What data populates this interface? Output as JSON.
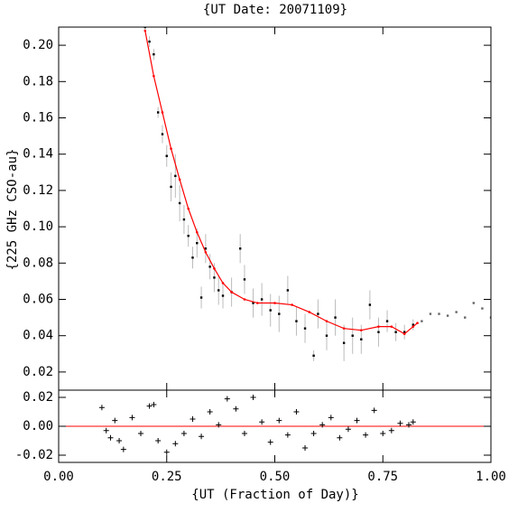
{
  "chart_data": [
    {
      "type": "scatter",
      "title": "{UT Date: 20071109}",
      "y_label": "{225 GHz CSO-au}",
      "xlim": [
        0,
        1
      ],
      "xticks": [
        0,
        0.25,
        0.5,
        0.75,
        1
      ],
      "ylim": [
        0.01,
        0.21
      ],
      "yticks": [
        0.02,
        0.04,
        0.06,
        0.08,
        {
          "value": 0.1,
          "label": "0.10"
        },
        0.12,
        0.14,
        0.16,
        0.18,
        {
          "value": 0.2,
          "label": "0.20"
        }
      ],
      "series": [
        {
          "marker": "dot",
          "color": "#000000",
          "error_color": "#bbbbbb",
          "x": [
            0.2,
            0.21,
            0.22,
            0.23,
            0.24,
            0.25,
            0.26,
            0.27,
            0.28,
            0.29,
            0.3,
            0.31,
            0.32,
            0.33,
            0.34,
            0.35,
            0.36,
            0.37,
            0.38,
            0.4,
            0.42,
            0.43,
            0.45,
            0.47,
            0.49,
            0.51,
            0.53,
            0.55,
            0.57,
            0.59,
            0.6,
            0.62,
            0.64,
            0.66,
            0.68,
            0.7,
            0.72,
            0.74,
            0.76,
            0.78,
            0.8,
            0.82
          ],
          "values": [
            0.21,
            0.202,
            0.195,
            0.163,
            0.151,
            0.139,
            0.122,
            0.128,
            0.113,
            0.104,
            0.095,
            0.083,
            0.091,
            0.061,
            0.088,
            0.078,
            0.072,
            0.065,
            0.062,
            0.064,
            0.088,
            0.071,
            0.058,
            0.06,
            0.054,
            0.052,
            0.065,
            0.048,
            0.044,
            0.029,
            0.052,
            0.04,
            0.05,
            0.036,
            0.04,
            0.038,
            0.057,
            0.042,
            0.048,
            0.042,
            0.042,
            0.046
          ],
          "errors": [
            0.002,
            0.003,
            0.003,
            0.003,
            0.005,
            0.006,
            0.008,
            0.012,
            0.01,
            0.008,
            0.006,
            0.006,
            0.008,
            0.006,
            0.008,
            0.007,
            0.008,
            0.008,
            0.007,
            0.008,
            0.008,
            0.008,
            0.008,
            0.009,
            0.009,
            0.01,
            0.008,
            0.008,
            0.008,
            0.003,
            0.008,
            0.008,
            0.01,
            0.01,
            0.01,
            0.008,
            0.008,
            0.008,
            0.006,
            0.005,
            0.004,
            0.003
          ]
        },
        {
          "marker": "dot",
          "color": "#666666",
          "x": [
            0.84,
            0.86,
            0.88,
            0.9,
            0.92,
            0.94,
            0.96,
            0.98,
            1
          ],
          "values": [
            0.048,
            0.052,
            0.052,
            0.051,
            0.053,
            0.05,
            0.058,
            0.055,
            0.05
          ]
        },
        {
          "marker": "line",
          "color": "#ff0000",
          "x": [
            0.2,
            0.22,
            0.24,
            0.26,
            0.28,
            0.3,
            0.32,
            0.34,
            0.36,
            0.38,
            0.4,
            0.43,
            0.46,
            0.5,
            0.54,
            0.58,
            0.62,
            0.66,
            0.7,
            0.74,
            0.77,
            0.8,
            0.82,
            0.83
          ],
          "values": [
            0.208,
            0.183,
            0.163,
            0.143,
            0.126,
            0.11,
            0.097,
            0.086,
            0.077,
            0.069,
            0.064,
            0.06,
            0.058,
            0.058,
            0.057,
            0.053,
            0.048,
            0.044,
            0.043,
            0.045,
            0.045,
            0.041,
            0.045,
            0.047
          ]
        }
      ]
    },
    {
      "type": "scatter",
      "x_label": "{UT (Fraction of Day)}",
      "xlim": [
        0,
        1
      ],
      "xticks": [
        {
          "value": 0,
          "label": "0.00"
        },
        0.25,
        {
          "value": 0.5,
          "label": "0.50"
        },
        0.75,
        {
          "value": 1,
          "label": "1.00"
        }
      ],
      "ylim": [
        -0.025,
        0.025
      ],
      "yticks": [
        -0.02,
        {
          "value": 0,
          "label": "0.00"
        },
        0.02
      ],
      "reference_line": 0,
      "reference_color": "#ff0000",
      "series": [
        {
          "marker": "plus",
          "color": "#000000",
          "x": [
            0.1,
            0.11,
            0.12,
            0.13,
            0.14,
            0.15,
            0.17,
            0.19,
            0.21,
            0.22,
            0.23,
            0.25,
            0.27,
            0.29,
            0.31,
            0.33,
            0.35,
            0.37,
            0.39,
            0.41,
            0.43,
            0.45,
            0.47,
            0.49,
            0.51,
            0.53,
            0.55,
            0.57,
            0.59,
            0.61,
            0.63,
            0.65,
            0.67,
            0.69,
            0.71,
            0.73,
            0.75,
            0.77,
            0.79,
            0.81,
            0.82
          ],
          "values": [
            0.013,
            -0.003,
            -0.008,
            0.004,
            -0.01,
            -0.016,
            0.006,
            -0.005,
            0.014,
            0.015,
            -0.01,
            -0.018,
            -0.012,
            -0.005,
            0.005,
            -0.007,
            0.01,
            0.001,
            0.019,
            0.012,
            -0.005,
            0.02,
            0.003,
            -0.011,
            0.004,
            -0.006,
            0.01,
            -0.015,
            -0.005,
            0.001,
            0.006,
            -0.008,
            -0.002,
            0.004,
            -0.006,
            0.011,
            -0.005,
            -0.003,
            0.002,
            0.001,
            0.003
          ]
        }
      ]
    }
  ]
}
